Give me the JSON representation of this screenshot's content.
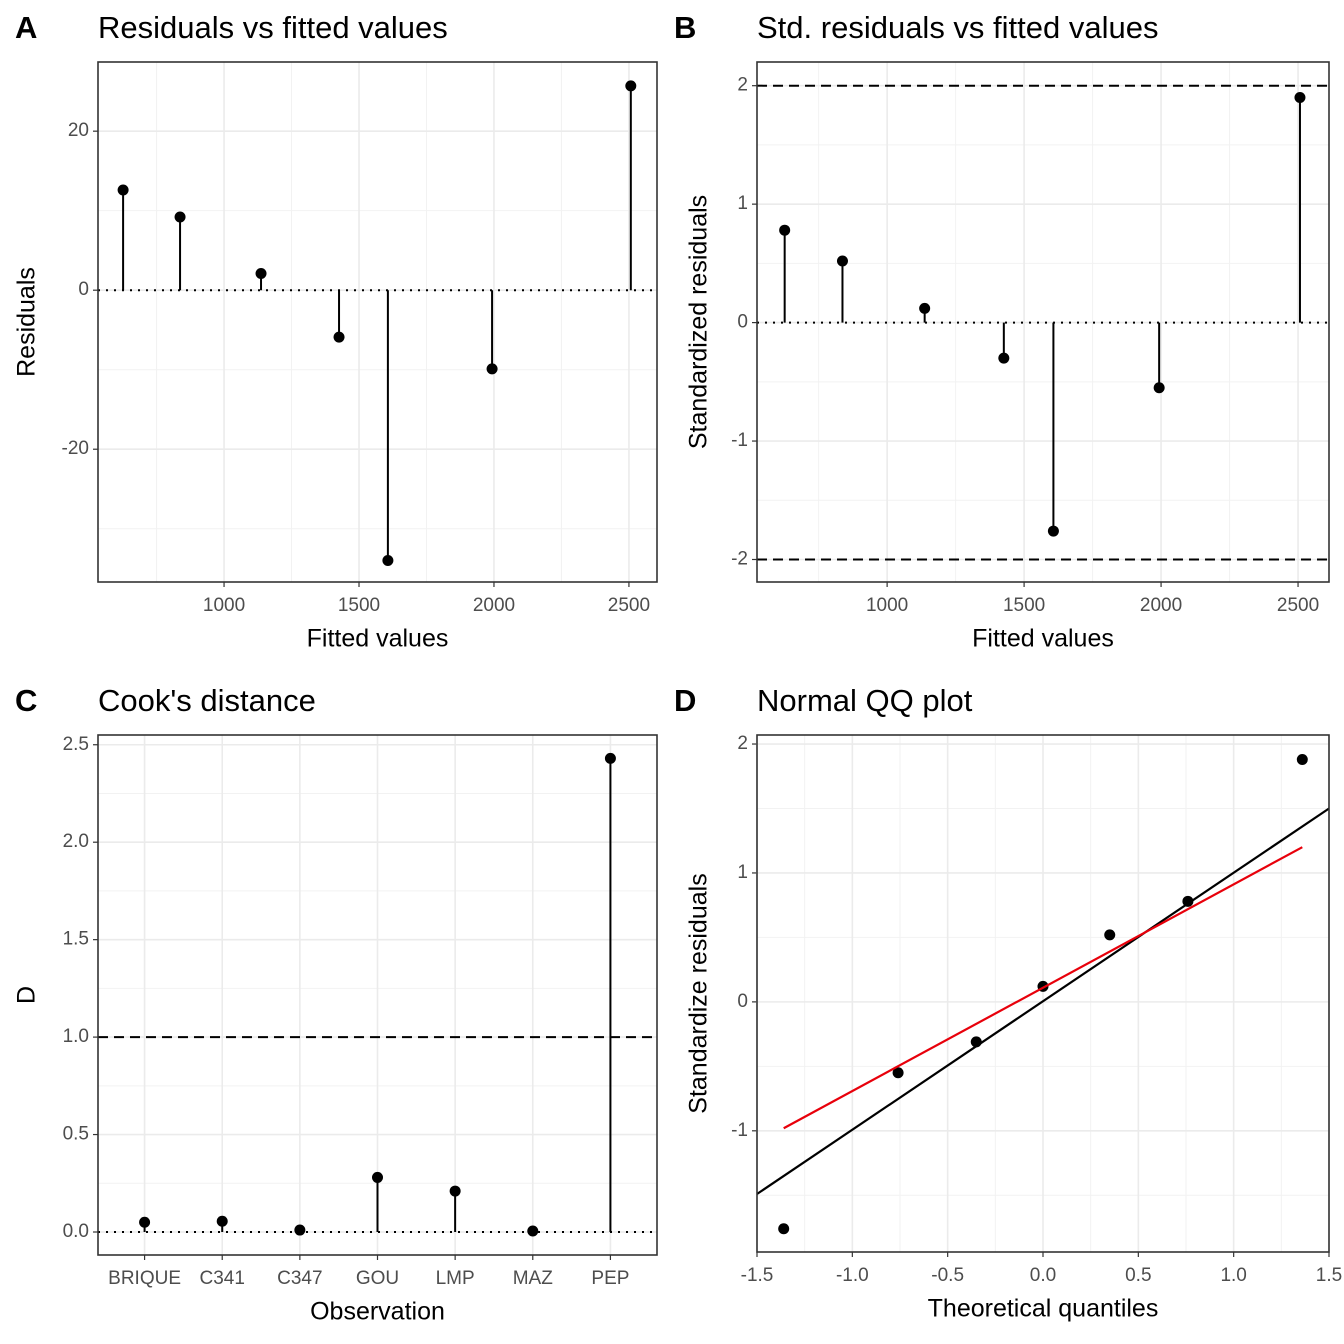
{
  "chart_data": [
    {
      "type": "lollipop",
      "panel": "A",
      "title": "Residuals vs fitted values",
      "x_label": "Fitted values",
      "y_label": "Residuals",
      "x": [
        626,
        837,
        1137,
        1426,
        1607,
        1993,
        2507
      ],
      "values": [
        12.6,
        9.2,
        2.1,
        -5.9,
        -34.0,
        -9.9,
        25.7
      ],
      "xlim": [
        533,
        2604
      ],
      "ylim": [
        -36.7,
        28.7
      ],
      "xticks": [
        1000,
        1500,
        2000,
        2500
      ],
      "yticks": [
        -20,
        0,
        20
      ],
      "grid": true,
      "color": "#000000"
    },
    {
      "type": "lollipop",
      "panel": "B",
      "title": "Std. residuals vs fitted values",
      "x_label": "Fitted values",
      "y_label": "Standardized residuals",
      "x": [
        626,
        837,
        1137,
        1426,
        1607,
        1993,
        2507
      ],
      "values": [
        0.78,
        0.52,
        0.12,
        -0.3,
        -1.76,
        -0.55,
        1.9
      ],
      "xlim": [
        525,
        2613
      ],
      "ylim": [
        -2.19,
        2.2
      ],
      "xticks": [
        1000,
        1500,
        2000,
        2500
      ],
      "yticks": [
        -2,
        -1,
        0,
        1,
        2
      ],
      "hlines": [
        -2,
        2
      ],
      "grid": true,
      "color": "#000000"
    },
    {
      "type": "lollipop",
      "panel": "C",
      "title": "Cook's distance",
      "x_label": "Observation",
      "y_label": "D",
      "categories": [
        "BRIQUE",
        "C341",
        "C347",
        "GOU",
        "LMP",
        "MAZ",
        "PEP"
      ],
      "values": [
        0.05,
        0.055,
        0.01,
        0.28,
        0.21,
        0.005,
        2.43
      ],
      "ylim": [
        -0.118,
        2.55
      ],
      "yticks": [
        {
          "value": 0,
          "label": "0.0"
        },
        {
          "value": 0.5,
          "label": "0.5"
        },
        {
          "value": 1,
          "label": "1.0"
        },
        {
          "value": 1.5,
          "label": "1.5"
        },
        {
          "value": 2,
          "label": "2.0"
        },
        {
          "value": 2.5,
          "label": "2.5"
        }
      ],
      "hlines": [
        1
      ],
      "grid": true,
      "color": "#000000"
    },
    {
      "type": "scatter",
      "panel": "D",
      "title": "Normal QQ plot",
      "x_label": "Theoretical quantiles",
      "y_label": "Standardize residuals",
      "series": [
        {
          "kind": "points",
          "color": "#000000",
          "x": [
            -1.36,
            -0.76,
            -0.35,
            0,
            0.35,
            0.76,
            1.36
          ],
          "values": [
            -1.76,
            -0.55,
            -0.31,
            0.12,
            0.52,
            0.78,
            1.88
          ]
        },
        {
          "kind": "line",
          "color": "#000000",
          "x": [
            -1.5,
            1.5
          ],
          "values": [
            -1.49,
            1.5
          ]
        },
        {
          "kind": "line",
          "color": "#e8000b",
          "x": [
            -1.36,
            1.36
          ],
          "values": [
            -0.98,
            1.2
          ]
        }
      ],
      "xlim": [
        -1.5,
        1.5
      ],
      "ylim": [
        -1.94,
        2.07
      ],
      "xticks": [
        {
          "value": -1.5,
          "label": "-1.5"
        },
        {
          "value": -1,
          "label": "-1.0"
        },
        {
          "value": -0.5,
          "label": "-0.5"
        },
        {
          "value": 0,
          "label": "0.0"
        },
        {
          "value": 0.5,
          "label": "0.5"
        },
        {
          "value": 1,
          "label": "1.0"
        },
        {
          "value": 1.5,
          "label": "1.5"
        }
      ],
      "yticks": [
        -1,
        0,
        1,
        2
      ],
      "grid": true
    }
  ]
}
